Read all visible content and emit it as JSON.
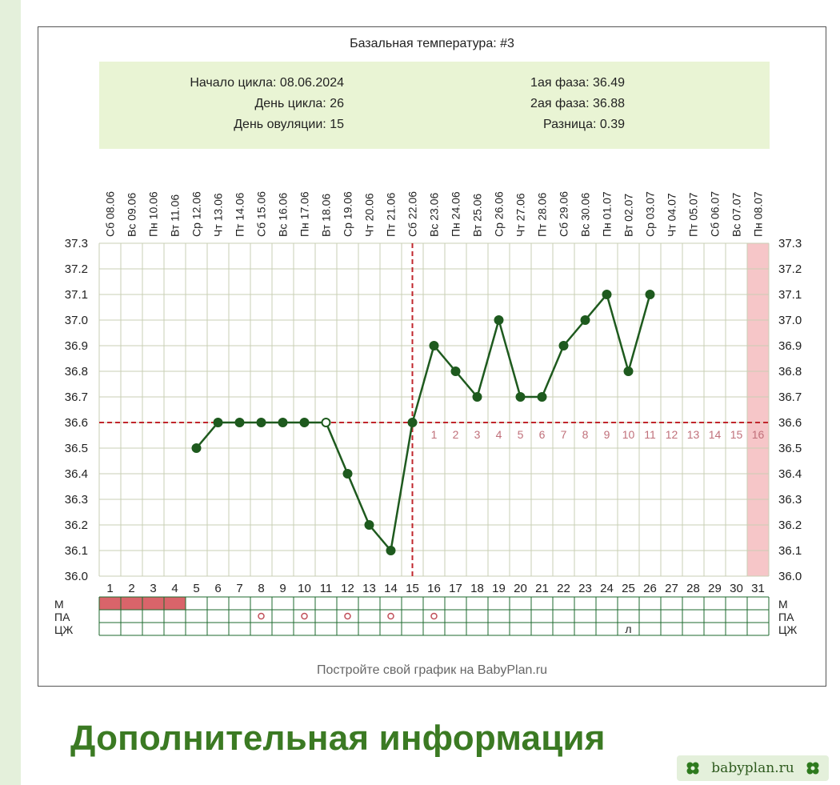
{
  "chart_data": {
    "type": "line",
    "title": "Базальная температура: #3",
    "info": {
      "left": [
        "Начало цикла: 08.06.2024",
        "День цикла: 26",
        "День овуляции: 15"
      ],
      "right": [
        "1ая фаза: 36.49",
        "2ая фаза: 36.88",
        "Разница: 0.39"
      ]
    },
    "x_days": [
      1,
      2,
      3,
      4,
      5,
      6,
      7,
      8,
      9,
      10,
      11,
      12,
      13,
      14,
      15,
      16,
      17,
      18,
      19,
      20,
      21,
      22,
      23,
      24,
      25,
      26,
      27,
      28,
      29,
      30,
      31
    ],
    "date_labels": [
      "Сб 08.06",
      "Вс 09.06",
      "Пн 10.06",
      "Вт 11.06",
      "Ср 12.06",
      "Чт 13.06",
      "Пт 14.06",
      "Сб 15.06",
      "Вс 16.06",
      "Пн 17.06",
      "Вт 18.06",
      "Ср 19.06",
      "Чт 20.06",
      "Пт 21.06",
      "Сб 22.06",
      "Вс 23.06",
      "Пн 24.06",
      "Вт 25.06",
      "Ср 26.06",
      "Чт 27.06",
      "Пт 28.06",
      "Сб 29.06",
      "Вс 30.06",
      "Пн 01.07",
      "Вт 02.07",
      "Ср 03.07",
      "Чт 04.07",
      "Пт 05.07",
      "Сб 06.07",
      "Вс 07.07",
      "Пн 08.07"
    ],
    "y_ticks": [
      "37.3",
      "37.2",
      "37.1",
      "37.0",
      "36.9",
      "36.8",
      "36.7",
      "36.6",
      "36.5",
      "36.4",
      "36.3",
      "36.2",
      "36.1",
      "36.0"
    ],
    "ylim": [
      36.0,
      37.3
    ],
    "temperatures": [
      {
        "day": 5,
        "temp": 36.5
      },
      {
        "day": 6,
        "temp": 36.6
      },
      {
        "day": 7,
        "temp": 36.6
      },
      {
        "day": 8,
        "temp": 36.6
      },
      {
        "day": 9,
        "temp": 36.6
      },
      {
        "day": 10,
        "temp": 36.6
      },
      {
        "day": 11,
        "temp": 36.6
      },
      {
        "day": 12,
        "temp": 36.4
      },
      {
        "day": 13,
        "temp": 36.2
      },
      {
        "day": 14,
        "temp": 36.1
      },
      {
        "day": 15,
        "temp": 36.6
      },
      {
        "day": 16,
        "temp": 36.9
      },
      {
        "day": 17,
        "temp": 36.8
      },
      {
        "day": 18,
        "temp": 36.7
      },
      {
        "day": 19,
        "temp": 37.0
      },
      {
        "day": 20,
        "temp": 36.7
      },
      {
        "day": 21,
        "temp": 36.7
      },
      {
        "day": 22,
        "temp": 36.9
      },
      {
        "day": 23,
        "temp": 37.0
      },
      {
        "day": 24,
        "temp": 37.1
      },
      {
        "day": 25,
        "temp": 36.8
      },
      {
        "day": 26,
        "temp": 37.1
      }
    ],
    "hollow_point_days": [
      11
    ],
    "coverline_temp": 36.6,
    "ovulation_day": 15,
    "highlight_day": 31,
    "luteal_day_labels": [
      {
        "day": 16,
        "label": "1"
      },
      {
        "day": 17,
        "label": "2"
      },
      {
        "day": 18,
        "label": "3"
      },
      {
        "day": 19,
        "label": "4"
      },
      {
        "day": 20,
        "label": "5"
      },
      {
        "day": 21,
        "label": "6"
      },
      {
        "day": 22,
        "label": "7"
      },
      {
        "day": 23,
        "label": "8"
      },
      {
        "day": 24,
        "label": "9"
      },
      {
        "day": 25,
        "label": "10"
      },
      {
        "day": 26,
        "label": "11"
      },
      {
        "day": 27,
        "label": "12"
      },
      {
        "day": 28,
        "label": "13"
      },
      {
        "day": 29,
        "label": "14"
      },
      {
        "day": 30,
        "label": "15"
      },
      {
        "day": 31,
        "label": "16"
      }
    ],
    "rows": [
      {
        "label": "М",
        "marks": []
      },
      {
        "label": "ПА",
        "marks": [
          {
            "day": 8,
            "symbol": "o"
          },
          {
            "day": 10,
            "symbol": "o"
          },
          {
            "day": 12,
            "symbol": "o"
          },
          {
            "day": 14,
            "symbol": "o"
          },
          {
            "day": 16,
            "symbol": "o"
          }
        ]
      },
      {
        "label": "ЦЖ",
        "marks": [
          {
            "day": 25,
            "symbol": "л"
          }
        ]
      }
    ],
    "menstruation_days": [
      1,
      2,
      3,
      4
    ],
    "footer": "Постройте свой график на BabyPlan.ru",
    "grid": true,
    "colors": {
      "line": "#1e5a1e",
      "point": "#1e5a1e",
      "coverline": "#c0262c",
      "grid": "#c9cfb4",
      "info_bg": "#e9f4d4",
      "highlight": "#f6c6c8",
      "menstruation": "#d9646a",
      "luteal_label": "#c0707a",
      "table_border": "#1e6a2e",
      "marker": "#c0505a"
    }
  },
  "section": {
    "heading": "Дополнительная информация"
  },
  "badge": {
    "text": "babyplan.ru",
    "icon": "clover-icon",
    "color": "#2e7a1e"
  }
}
